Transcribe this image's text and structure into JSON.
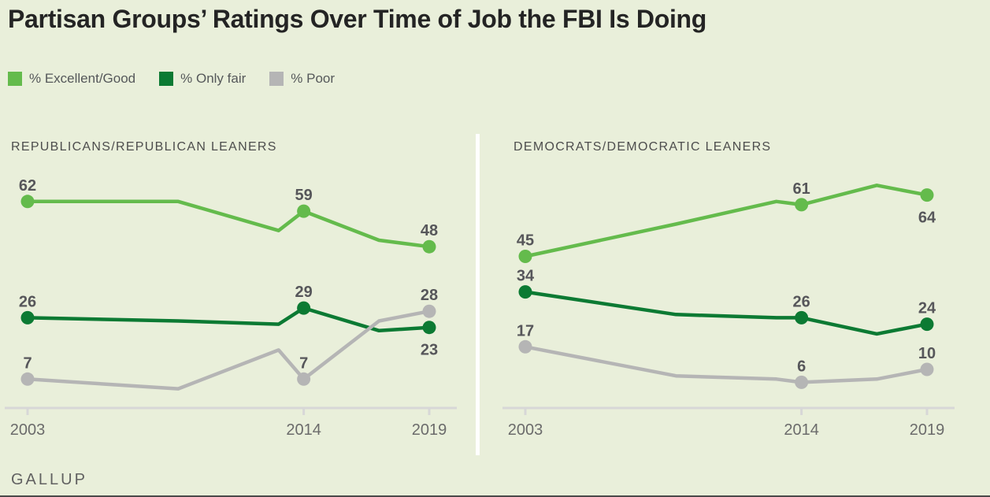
{
  "title": "Partisan Groups’ Ratings Over Time of Job the FBI Is Doing",
  "source": "GALLUP",
  "page_bg": "#E9EFDA",
  "legend": [
    {
      "key": "excellent_good",
      "label": "% Excellent/Good",
      "color": "#64BB4C"
    },
    {
      "key": "only_fair",
      "label": "% Only fair",
      "color": "#0C7A33"
    },
    {
      "key": "poor",
      "label": "% Poor",
      "color": "#B5B5B5"
    }
  ],
  "axis": {
    "line_color": "#D7D7D7",
    "tick_label_color": "#6B6B6B"
  },
  "text_colors": {
    "title": "#242424",
    "panel_title": "#4D4D4D",
    "data_label": "#56565A",
    "legend_label": "#55585A",
    "source": "#616161"
  },
  "chart_data": [
    {
      "type": "line",
      "title": "REPUBLICANS/REPUBLICAN LEANERS",
      "x_range": [
        2003,
        2019
      ],
      "x_tick_years": [
        2003,
        2014,
        2019
      ],
      "x_ticks": [
        "2003",
        "2014",
        "2019"
      ],
      "ylim": [
        0,
        80
      ],
      "grid": false,
      "series": [
        {
          "key": "excellent_good",
          "name": "% Excellent/Good",
          "color": "#64BB4C",
          "points": [
            [
              2003,
              62
            ],
            [
              2009,
              62
            ],
            [
              2013,
              53
            ],
            [
              2014,
              59
            ],
            [
              2017,
              50
            ],
            [
              2019,
              48
            ]
          ],
          "labeled": [
            {
              "year": 2003,
              "value": 62,
              "pos": "above"
            },
            {
              "year": 2014,
              "value": 59,
              "pos": "above"
            },
            {
              "year": 2019,
              "value": 48,
              "pos": "above"
            }
          ]
        },
        {
          "key": "only_fair",
          "name": "% Only fair",
          "color": "#0C7A33",
          "points": [
            [
              2003,
              26
            ],
            [
              2009,
              25
            ],
            [
              2013,
              24
            ],
            [
              2014,
              29
            ],
            [
              2017,
              22
            ],
            [
              2019,
              23
            ]
          ],
          "labeled": [
            {
              "year": 2003,
              "value": 26,
              "pos": "above"
            },
            {
              "year": 2014,
              "value": 29,
              "pos": "above"
            },
            {
              "year": 2019,
              "value": 23,
              "pos": "below"
            }
          ]
        },
        {
          "key": "poor",
          "name": "% Poor",
          "color": "#B5B5B5",
          "points": [
            [
              2003,
              7
            ],
            [
              2009,
              4
            ],
            [
              2013,
              16
            ],
            [
              2014,
              7
            ],
            [
              2017,
              25
            ],
            [
              2019,
              28
            ]
          ],
          "labeled": [
            {
              "year": 2003,
              "value": 7,
              "pos": "above"
            },
            {
              "year": 2014,
              "value": 7,
              "pos": "above"
            },
            {
              "year": 2019,
              "value": 28,
              "pos": "above"
            }
          ]
        }
      ]
    },
    {
      "type": "line",
      "title": "DEMOCRATS/DEMOCRATIC LEANERS",
      "x_range": [
        2003,
        2019
      ],
      "x_tick_years": [
        2003,
        2014,
        2019
      ],
      "x_ticks": [
        "2003",
        "2014",
        "2019"
      ],
      "ylim": [
        0,
        80
      ],
      "grid": false,
      "series": [
        {
          "key": "excellent_good",
          "name": "% Excellent/Good",
          "color": "#64BB4C",
          "points": [
            [
              2003,
              45
            ],
            [
              2009,
              55
            ],
            [
              2013,
              62
            ],
            [
              2014,
              61
            ],
            [
              2017,
              67
            ],
            [
              2019,
              64
            ]
          ],
          "labeled": [
            {
              "year": 2003,
              "value": 45,
              "pos": "above"
            },
            {
              "year": 2014,
              "value": 61,
              "pos": "above"
            },
            {
              "year": 2019,
              "value": 64,
              "pos": "below"
            }
          ]
        },
        {
          "key": "only_fair",
          "name": "% Only fair",
          "color": "#0C7A33",
          "points": [
            [
              2003,
              34
            ],
            [
              2009,
              27
            ],
            [
              2013,
              26
            ],
            [
              2014,
              26
            ],
            [
              2017,
              21
            ],
            [
              2019,
              24
            ]
          ],
          "labeled": [
            {
              "year": 2003,
              "value": 34,
              "pos": "above"
            },
            {
              "year": 2014,
              "value": 26,
              "pos": "above"
            },
            {
              "year": 2019,
              "value": 24,
              "pos": "above"
            }
          ]
        },
        {
          "key": "poor",
          "name": "% Poor",
          "color": "#B5B5B5",
          "points": [
            [
              2003,
              17
            ],
            [
              2009,
              8
            ],
            [
              2013,
              7
            ],
            [
              2014,
              6
            ],
            [
              2017,
              7
            ],
            [
              2019,
              10
            ]
          ],
          "labeled": [
            {
              "year": 2003,
              "value": 17,
              "pos": "above"
            },
            {
              "year": 2014,
              "value": 6,
              "pos": "above"
            },
            {
              "year": 2019,
              "value": 10,
              "pos": "above"
            }
          ]
        }
      ]
    }
  ]
}
